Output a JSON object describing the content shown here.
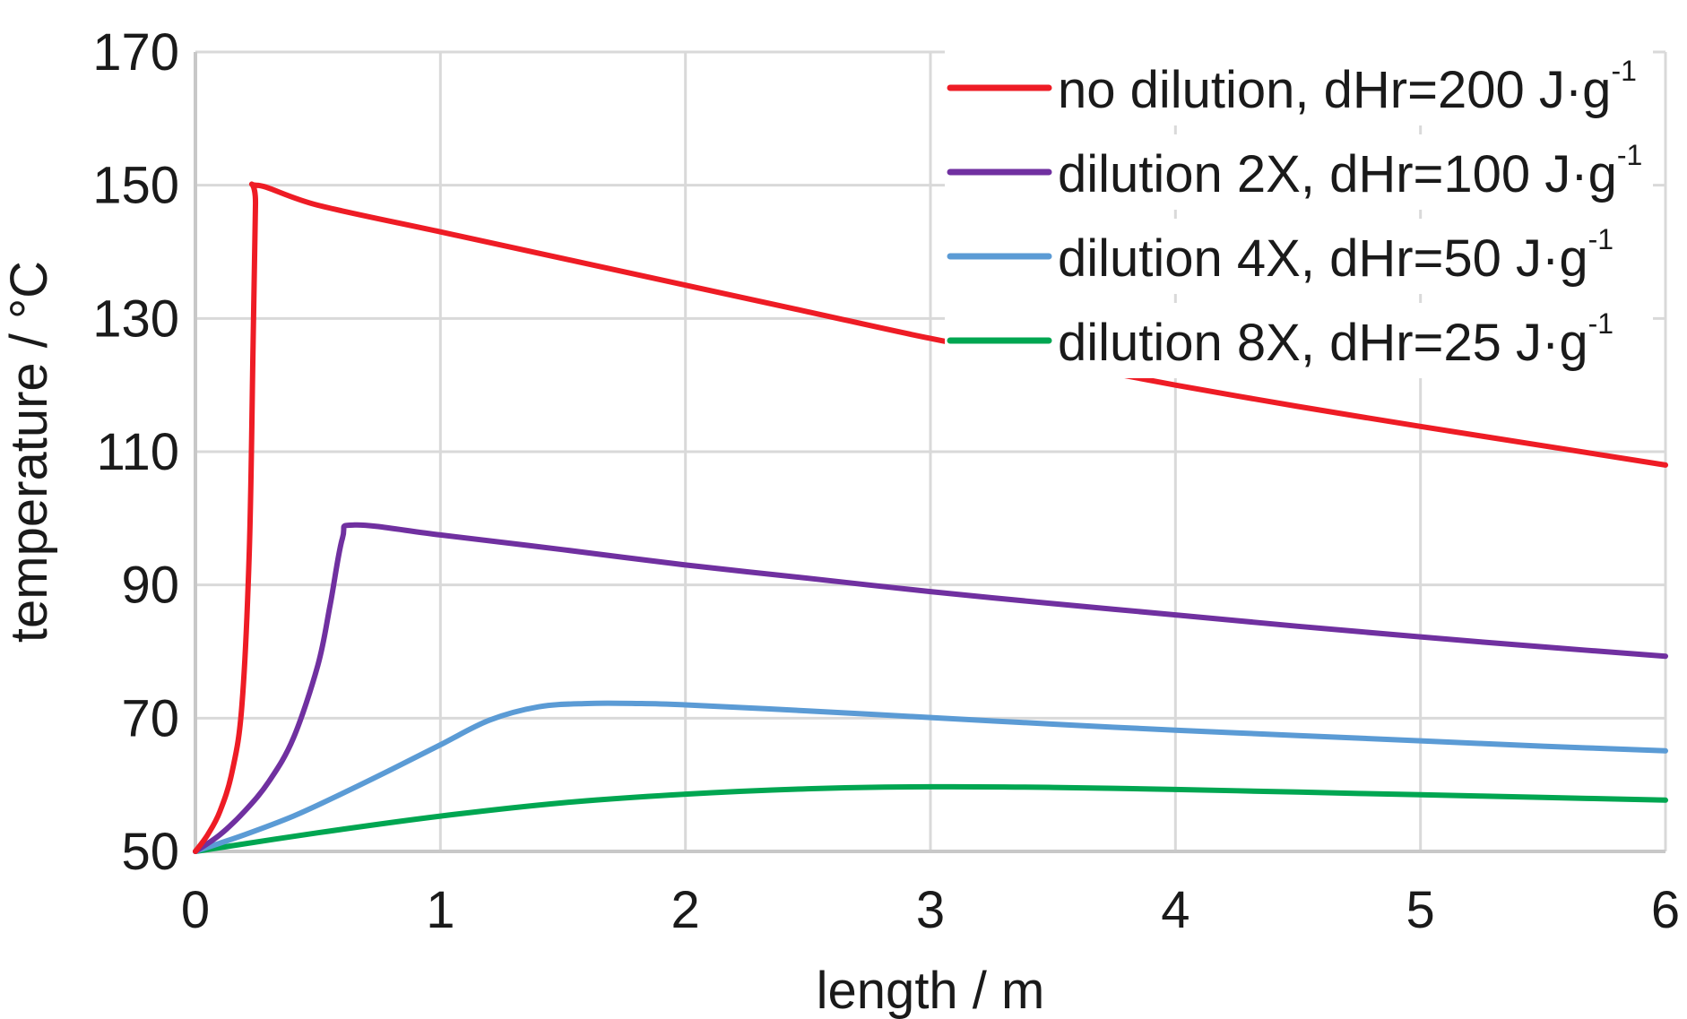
{
  "chart_data": {
    "type": "line",
    "xlabel": "length / m",
    "ylabel": "temperature / °C",
    "xlim": [
      0,
      6
    ],
    "ylim": [
      50,
      170
    ],
    "x_ticks": [
      "0",
      "1",
      "2",
      "3",
      "4",
      "5",
      "6"
    ],
    "y_ticks": [
      "50",
      "70",
      "90",
      "110",
      "130",
      "150",
      "170"
    ],
    "grid": true,
    "legend_position": "top-right",
    "series": [
      {
        "name": "no dilution, dHr=200 J·g",
        "superscript": "-1",
        "color": "#ee1c25",
        "x": [
          0,
          0.05,
          0.1,
          0.15,
          0.19,
          0.22,
          0.235,
          0.245,
          0.25,
          0.5,
          1.0,
          1.5,
          2.0,
          2.5,
          3.0,
          3.5,
          4.0,
          4.5,
          5.0,
          5.5,
          6.0
        ],
        "y": [
          50,
          52.5,
          56,
          62,
          72,
          95,
          125,
          147,
          150,
          147,
          143,
          139,
          135,
          131,
          127,
          123.5,
          120,
          116.8,
          113.8,
          110.9,
          108
        ]
      },
      {
        "name": "dilution 2X, dHr=100 J·g",
        "superscript": "-1",
        "color": "#7030a0",
        "x": [
          0,
          0.1,
          0.2,
          0.3,
          0.4,
          0.5,
          0.55,
          0.6,
          0.65,
          1.0,
          1.5,
          2.0,
          2.5,
          3.0,
          3.5,
          4.0,
          4.5,
          5.0,
          5.5,
          6.0
        ],
        "y": [
          50,
          52.5,
          56,
          60.5,
          67,
          78,
          87,
          97,
          99,
          97.5,
          95.3,
          93,
          91,
          89,
          87.2,
          85.5,
          83.8,
          82.2,
          80.7,
          79.3
        ]
      },
      {
        "name": "dilution 4X, dHr=50 J·g",
        "superscript": "-1",
        "color": "#5b9bd5",
        "x": [
          0,
          0.2,
          0.4,
          0.6,
          0.8,
          1.0,
          1.2,
          1.4,
          1.6,
          1.8,
          2.0,
          2.5,
          3.0,
          3.5,
          4.0,
          4.5,
          5.0,
          5.5,
          6.0
        ],
        "y": [
          50,
          52.5,
          55.3,
          58.7,
          62.3,
          66,
          69.7,
          71.7,
          72.2,
          72.2,
          72,
          71.1,
          70.1,
          69.1,
          68.2,
          67.4,
          66.6,
          65.8,
          65.1
        ]
      },
      {
        "name": "dilution 8X, dHr=25 J·g",
        "superscript": "-1",
        "color": "#00a651",
        "x": [
          0,
          0.5,
          1.0,
          1.5,
          2.0,
          2.5,
          3.0,
          3.5,
          4.0,
          4.5,
          5.0,
          5.5,
          6.0
        ],
        "y": [
          50,
          52.8,
          55.3,
          57.3,
          58.6,
          59.4,
          59.7,
          59.6,
          59.3,
          58.9,
          58.5,
          58.1,
          57.7
        ]
      }
    ]
  }
}
